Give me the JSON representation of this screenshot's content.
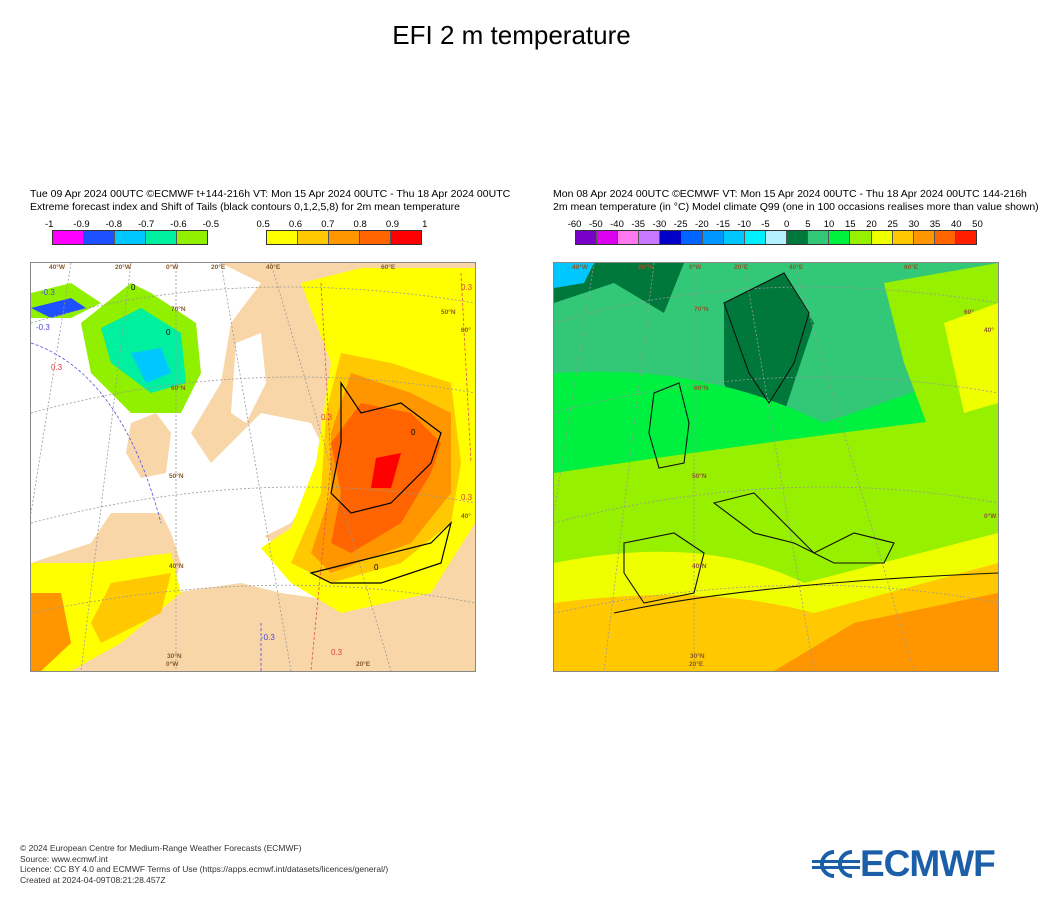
{
  "title": "EFI 2 m temperature",
  "left_panel": {
    "header_line1": "Tue 09 Apr 2024 00UTC ©ECMWF t+144-216h  VT: Mon 15 Apr 2024 00UTC - Thu 18 Apr 2024 00UTC",
    "header_line2": "Extreme forecast index and Shift of Tails (black contours 0,1,2,5,8) for 2m mean temperature",
    "colorbar_negative": {
      "labels": [
        "-1",
        "-0.9",
        "-0.8",
        "-0.7",
        "-0.6",
        "-0.5"
      ],
      "colors": [
        "#ff00ff",
        "#1e50ff",
        "#00c8ff",
        "#00f0a0",
        "#90f000"
      ]
    },
    "colorbar_positive": {
      "labels": [
        "0.5",
        "0.6",
        "0.7",
        "0.8",
        "0.9",
        "1"
      ],
      "colors": [
        "#ffff00",
        "#ffc800",
        "#ff9600",
        "#ff6400",
        "#ff0000"
      ]
    },
    "grid_labels": [
      "40°W",
      "20°W",
      "0°W",
      "20°E",
      "40°E",
      "60°E",
      "70°N",
      "60°N",
      "50°N",
      "40°N",
      "30°N",
      "50°N",
      "60°",
      "40°",
      "0°W",
      "20°E"
    ],
    "contour_labels": [
      "-0.3",
      "-0.3",
      "0.3",
      "0.3",
      "0.3",
      "0.3",
      "0.3",
      "-0.3",
      "0",
      "0",
      "0",
      "0"
    ]
  },
  "right_panel": {
    "header_line1": "Mon 08 Apr 2024 00UTC ©ECMWF VT: Mon 15 Apr 2024 00UTC - Thu 18 Apr 2024 00UTC   144-216h",
    "header_line2": "2m mean temperature (in °C)  Model climate Q99 (one in 100 occasions realises more than value shown)",
    "colorbar": {
      "labels": [
        "-60",
        "-50",
        "-40",
        "-35",
        "-30",
        "-25",
        "-20",
        "-15",
        "-10",
        "-5",
        "0",
        "5",
        "10",
        "15",
        "20",
        "25",
        "30",
        "35",
        "40",
        "50"
      ],
      "colors": [
        "#7800c8",
        "#dc00f0",
        "#ff78f0",
        "#c878ff",
        "#0000c8",
        "#0064ff",
        "#0096ff",
        "#00c8ff",
        "#00f0ff",
        "#b4f0ff",
        "#00783c",
        "#32c878",
        "#00f040",
        "#96f000",
        "#f0ff00",
        "#ffc800",
        "#ff9600",
        "#ff6400",
        "#ff1e00"
      ]
    },
    "grid_labels": [
      "40°W",
      "20°W",
      "0°W",
      "20°E",
      "40°E",
      "60°E",
      "70°N",
      "60°N",
      "50°N",
      "40°N",
      "30°N",
      "60°",
      "40°",
      "0°W",
      "20°E"
    ]
  },
  "footer": {
    "lines": [
      "© 2024 European Centre for Medium-Range Weather Forecasts (ECMWF)",
      "Source: www.ecmwf.int",
      "Licence: CC BY 4.0 and ECMWF Terms of Use (https://apps.ecmwf.int/datasets/licences/general/)",
      "Created at 2024-04-09T08:21:28.457Z"
    ]
  },
  "logo_text": "ECMWF",
  "chart_data": [
    {
      "type": "heatmap",
      "title": "Extreme forecast index and Shift of Tails for 2m mean temperature",
      "variable": "EFI",
      "range": [
        -1,
        1
      ],
      "levels": [
        -1,
        -0.9,
        -0.8,
        -0.7,
        -0.6,
        -0.5,
        0.5,
        0.6,
        0.7,
        0.8,
        0.9,
        1
      ],
      "sot_contours": [
        0,
        1,
        2,
        5,
        8
      ],
      "region": "Europe"
    },
    {
      "type": "heatmap",
      "title": "2m mean temperature Model climate Q99",
      "unit": "°C",
      "levels": [
        -60,
        -50,
        -40,
        -35,
        -30,
        -25,
        -20,
        -15,
        -10,
        -5,
        0,
        5,
        10,
        15,
        20,
        25,
        30,
        35,
        40,
        50
      ],
      "region": "Europe"
    }
  ]
}
